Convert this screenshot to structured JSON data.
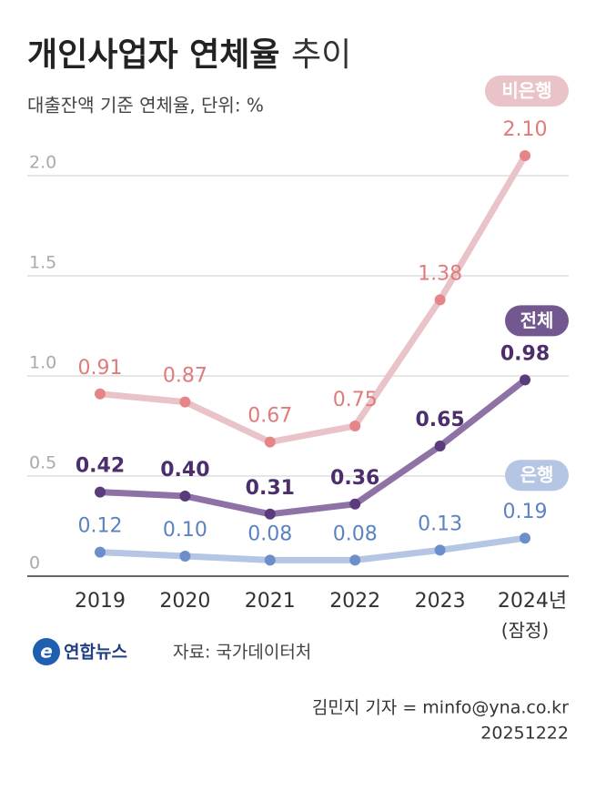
{
  "chart_data": {
    "type": "line",
    "title": "개인사업자 연체율",
    "title_suffix": "추이",
    "subtitle": "대출잔액 기준 연체율, 단위: %",
    "categories": [
      "2019",
      "2020",
      "2021",
      "2022",
      "2023",
      "2024년"
    ],
    "category_sublabels": [
      null,
      null,
      null,
      null,
      null,
      "(잠정)"
    ],
    "ylim": [
      0,
      2.2
    ],
    "yticks": [
      0,
      0.5,
      {
        "value": 1.0,
        "label": "1.0"
      },
      1.5,
      {
        "value": 2.0,
        "label": "2.0"
      }
    ],
    "grid": true,
    "series": [
      {
        "name": "비은행",
        "color": "#e9c3c8",
        "marker_color": "#e5858a",
        "label_color": "#e07b7b",
        "bold_labels": false,
        "values": [
          0.91,
          0.87,
          0.67,
          0.75,
          1.38,
          2.1
        ],
        "value_labels": [
          "0.91",
          "0.87",
          "0.67",
          "0.75",
          "1.38",
          "2.10"
        ]
      },
      {
        "name": "전체",
        "color": "#8e72a6",
        "marker_color": "#5a3b7c",
        "label_color": "#4b2e6b",
        "bold_labels": true,
        "values": [
          0.42,
          0.4,
          0.31,
          0.36,
          0.65,
          0.98
        ],
        "value_labels": [
          "0.42",
          "0.40",
          "0.31",
          "0.36",
          "0.65",
          "0.98"
        ]
      },
      {
        "name": "은행",
        "color": "#b4c6e3",
        "marker_color": "#6c8fcb",
        "label_color": "#5c82c2",
        "bold_labels": false,
        "values": [
          0.12,
          0.1,
          0.08,
          0.08,
          0.13,
          0.19
        ],
        "value_labels": [
          "0.12",
          "0.10",
          "0.08",
          "0.08",
          "0.13",
          "0.19"
        ]
      }
    ]
  },
  "source": {
    "logo": "연합뉴스",
    "text": "자료: 국가데이터처"
  },
  "credit": {
    "author": "김민지 기자 = minfo@yna.co.kr",
    "date": "20251222"
  }
}
